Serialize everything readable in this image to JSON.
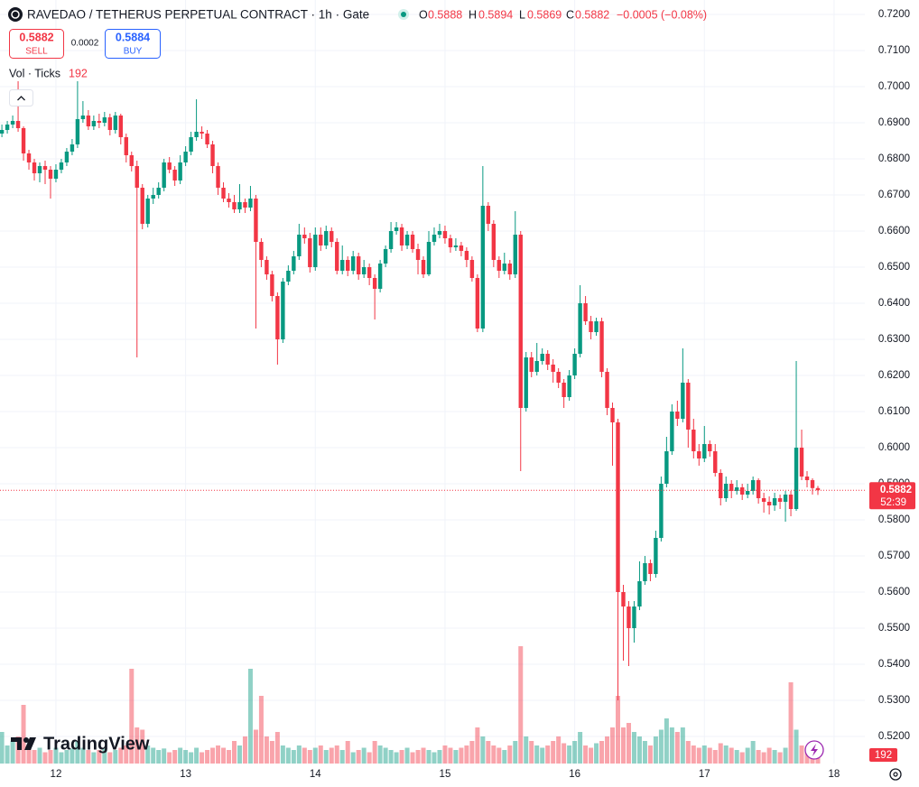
{
  "chart_data": {
    "type": "candlestick",
    "ohlc_header": {
      "symbol": "RAVEDAO / TETHERUS PERPETUAL CONTRACT · 1h · Gate",
      "o_label": "O",
      "o": "0.5888",
      "h_label": "H",
      "h": "0.5894",
      "l_label": "L",
      "l": "0.5869",
      "c_label": "C",
      "c": "0.5882",
      "change": "−0.0005 (−0.08%)"
    },
    "trade": {
      "sell_price": "0.5882",
      "sell_label": "SELL",
      "spread": "0.0002",
      "buy_price": "0.5884",
      "buy_label": "BUY"
    },
    "volume_title": "Vol · Ticks",
    "volume_value": "192",
    "brand": "TradingView",
    "last_price": {
      "value": 0.5882,
      "label": "0.5882",
      "countdown": "52:39"
    },
    "volume_axis_label": "192",
    "up_color": "#089981",
    "down_color": "#f23645",
    "ylim": [
      0.5115,
      0.724
    ],
    "yticks": [
      {
        "value": 0.52,
        "label": "0.5200"
      },
      {
        "value": 0.53,
        "label": "0.5300"
      },
      {
        "value": 0.54,
        "label": "0.5400"
      },
      {
        "value": 0.55,
        "label": "0.5500"
      },
      {
        "value": 0.56,
        "label": "0.5600"
      },
      {
        "value": 0.57,
        "label": "0.5700"
      },
      {
        "value": 0.58,
        "label": "0.5800"
      },
      {
        "value": 0.59,
        "label": "0.5900"
      },
      {
        "value": 0.6,
        "label": "0.6000"
      },
      {
        "value": 0.61,
        "label": "0.6100"
      },
      {
        "value": 0.62,
        "label": "0.6200"
      },
      {
        "value": 0.63,
        "label": "0.6300"
      },
      {
        "value": 0.64,
        "label": "0.6400"
      },
      {
        "value": 0.65,
        "label": "0.6500"
      },
      {
        "value": 0.66,
        "label": "0.6600"
      },
      {
        "value": 0.67,
        "label": "0.6700"
      },
      {
        "value": 0.68,
        "label": "0.6800"
      },
      {
        "value": 0.69,
        "label": "0.6900"
      },
      {
        "value": 0.7,
        "label": "0.7000"
      },
      {
        "value": 0.71,
        "label": "0.7100"
      },
      {
        "value": 0.72,
        "label": "0.7200"
      }
    ],
    "grid": true,
    "categories": [
      null,
      null,
      null,
      null,
      null,
      null,
      null,
      null,
      null,
      null,
      "12",
      null,
      null,
      null,
      null,
      null,
      null,
      null,
      null,
      null,
      null,
      null,
      null,
      null,
      null,
      null,
      null,
      null,
      null,
      null,
      null,
      null,
      null,
      null,
      "13",
      null,
      null,
      null,
      null,
      null,
      null,
      null,
      null,
      null,
      null,
      null,
      null,
      null,
      null,
      null,
      null,
      null,
      null,
      null,
      null,
      null,
      null,
      null,
      "14",
      null,
      null,
      null,
      null,
      null,
      null,
      null,
      null,
      null,
      null,
      null,
      null,
      null,
      null,
      null,
      null,
      null,
      null,
      null,
      null,
      null,
      null,
      null,
      "15",
      null,
      null,
      null,
      null,
      null,
      null,
      null,
      null,
      null,
      null,
      null,
      null,
      null,
      null,
      null,
      null,
      null,
      null,
      null,
      null,
      null,
      null,
      null,
      "16",
      null,
      null,
      null,
      null,
      null,
      null,
      null,
      null,
      null,
      null,
      null,
      null,
      null,
      null,
      null,
      null,
      null,
      null,
      null,
      null,
      null,
      null,
      null,
      "17",
      null,
      null,
      null,
      null,
      null,
      null,
      null,
      null,
      null,
      null,
      null,
      null,
      null,
      null,
      null,
      null,
      null,
      null,
      null,
      null,
      null,
      null,
      null,
      "18"
    ],
    "open": [
      0.687,
      0.688,
      0.6895,
      0.6905,
      0.6885,
      0.6815,
      0.679,
      0.676,
      0.678,
      0.677,
      0.6745,
      0.677,
      0.679,
      0.682,
      0.684,
      0.691,
      0.692,
      0.689,
      0.6905,
      0.69,
      0.6915,
      0.688,
      0.692,
      0.686,
      0.681,
      0.678,
      0.672,
      0.662,
      0.669,
      0.67,
      0.672,
      0.679,
      0.677,
      0.674,
      0.679,
      0.682,
      0.686,
      0.6875,
      0.687,
      0.684,
      0.678,
      0.672,
      0.669,
      0.668,
      0.666,
      0.668,
      0.6665,
      0.669,
      0.657,
      0.652,
      0.648,
      0.642,
      0.63,
      0.646,
      0.649,
      0.653,
      0.659,
      0.658,
      0.65,
      0.659,
      0.656,
      0.66,
      0.657,
      0.649,
      0.652,
      0.649,
      0.653,
      0.648,
      0.65,
      0.647,
      0.644,
      0.651,
      0.655,
      0.66,
      0.661,
      0.656,
      0.659,
      0.655,
      0.652,
      0.648,
      0.657,
      0.659,
      0.66,
      0.658,
      0.6555,
      0.656,
      0.6545,
      0.652,
      0.647,
      0.633,
      0.667,
      0.662,
      0.652,
      0.649,
      0.651,
      0.648,
      0.659,
      0.611,
      0.625,
      0.621,
      0.624,
      0.626,
      0.623,
      0.621,
      0.618,
      0.614,
      0.62,
      0.626,
      0.64,
      0.635,
      0.632,
      0.635,
      0.621,
      0.611,
      0.607,
      0.56,
      0.556,
      0.55,
      0.556,
      0.563,
      0.568,
      0.565,
      0.575,
      0.59,
      0.599,
      0.61,
      0.608,
      0.618,
      0.605,
      0.599,
      0.597,
      0.601,
      0.599,
      0.593,
      0.586,
      0.59,
      0.588,
      0.589,
      0.587,
      0.588,
      0.591,
      0.586,
      0.585,
      0.584,
      0.586,
      0.585,
      0.587,
      0.583,
      0.6,
      0.592,
      0.591,
      0.5888,
      null,
      null,
      null
    ],
    "high": [
      0.6895,
      0.6905,
      0.692,
      0.7015,
      0.689,
      0.6825,
      0.68,
      0.679,
      0.6795,
      0.678,
      0.6785,
      0.68,
      0.683,
      0.6855,
      0.7015,
      0.696,
      0.6935,
      0.692,
      0.6925,
      0.693,
      0.6925,
      0.693,
      0.6925,
      0.687,
      0.682,
      0.6795,
      0.673,
      0.67,
      0.672,
      0.6735,
      0.68,
      0.6805,
      0.678,
      0.681,
      0.6835,
      0.6875,
      0.6965,
      0.689,
      0.688,
      0.685,
      0.679,
      0.6735,
      0.6705,
      0.67,
      0.673,
      0.669,
      0.6725,
      0.67,
      0.658,
      0.653,
      0.649,
      0.643,
      0.647,
      0.6505,
      0.6545,
      0.662,
      0.661,
      0.6595,
      0.661,
      0.661,
      0.6615,
      0.661,
      0.658,
      0.656,
      0.653,
      0.6545,
      0.654,
      0.652,
      0.651,
      0.648,
      0.652,
      0.656,
      0.6625,
      0.6625,
      0.662,
      0.66,
      0.66,
      0.6565,
      0.653,
      0.66,
      0.661,
      0.662,
      0.6615,
      0.659,
      0.658,
      0.657,
      0.6555,
      0.653,
      0.648,
      0.678,
      0.668,
      0.663,
      0.653,
      0.654,
      0.652,
      0.6655,
      0.66,
      0.6265,
      0.6265,
      0.629,
      0.6275,
      0.627,
      0.6245,
      0.622,
      0.619,
      0.6215,
      0.6275,
      0.645,
      0.642,
      0.6365,
      0.636,
      0.636,
      0.622,
      0.6125,
      0.608,
      0.562,
      0.5575,
      0.5575,
      0.5685,
      0.57,
      0.569,
      0.577,
      0.592,
      0.603,
      0.612,
      0.613,
      0.6275,
      0.619,
      0.608,
      0.601,
      0.606,
      0.602,
      0.601,
      0.594,
      0.592,
      0.591,
      0.591,
      0.59,
      0.59,
      0.592,
      0.5915,
      0.5875,
      0.5865,
      0.5875,
      0.587,
      0.588,
      0.588,
      0.624,
      0.605,
      0.5935,
      0.5915,
      0.5894,
      null,
      null,
      null
    ],
    "low": [
      0.686,
      0.687,
      0.6885,
      0.6875,
      0.6795,
      0.677,
      0.674,
      0.6735,
      0.673,
      0.669,
      0.6735,
      0.676,
      0.678,
      0.681,
      0.683,
      0.69,
      0.688,
      0.688,
      0.6885,
      0.689,
      0.6865,
      0.687,
      0.684,
      0.679,
      0.6765,
      0.625,
      0.6605,
      0.661,
      0.6675,
      0.669,
      0.671,
      0.676,
      0.6725,
      0.673,
      0.678,
      0.681,
      0.685,
      0.6855,
      0.683,
      0.676,
      0.67,
      0.668,
      0.6665,
      0.665,
      0.665,
      0.665,
      0.6655,
      0.633,
      0.65,
      0.6465,
      0.6405,
      0.623,
      0.629,
      0.645,
      0.648,
      0.652,
      0.6565,
      0.6485,
      0.649,
      0.6545,
      0.655,
      0.6555,
      0.648,
      0.648,
      0.6475,
      0.648,
      0.6465,
      0.647,
      0.645,
      0.6355,
      0.643,
      0.65,
      0.654,
      0.659,
      0.6545,
      0.655,
      0.654,
      0.648,
      0.647,
      0.6475,
      0.656,
      0.658,
      0.6565,
      0.654,
      0.6545,
      0.653,
      0.65,
      0.646,
      0.632,
      0.632,
      0.66,
      0.65,
      0.647,
      0.648,
      0.6465,
      0.647,
      0.5935,
      0.61,
      0.6195,
      0.62,
      0.623,
      0.6215,
      0.618,
      0.6165,
      0.611,
      0.613,
      0.619,
      0.625,
      0.634,
      0.63,
      0.631,
      0.6195,
      0.609,
      0.595,
      0.53,
      0.541,
      0.5395,
      0.546,
      0.555,
      0.562,
      0.563,
      0.564,
      0.574,
      0.589,
      0.598,
      0.606,
      0.607,
      0.6,
      0.597,
      0.595,
      0.596,
      0.5975,
      0.592,
      0.584,
      0.585,
      0.586,
      0.587,
      0.5855,
      0.586,
      0.587,
      0.5845,
      0.582,
      0.5815,
      0.5825,
      0.583,
      0.5795,
      0.581,
      0.5825,
      0.591,
      0.589,
      0.587,
      0.5869,
      null,
      null,
      null
    ],
    "close": [
      0.688,
      0.6895,
      0.6905,
      0.6885,
      0.6815,
      0.679,
      0.676,
      0.678,
      0.677,
      0.6745,
      0.677,
      0.679,
      0.682,
      0.684,
      0.691,
      0.692,
      0.689,
      0.6905,
      0.69,
      0.6915,
      0.688,
      0.692,
      0.686,
      0.681,
      0.678,
      0.672,
      0.662,
      0.669,
      0.67,
      0.672,
      0.679,
      0.677,
      0.674,
      0.679,
      0.682,
      0.686,
      0.6875,
      0.687,
      0.684,
      0.678,
      0.672,
      0.669,
      0.668,
      0.666,
      0.668,
      0.6665,
      0.669,
      0.657,
      0.652,
      0.648,
      0.642,
      0.63,
      0.646,
      0.649,
      0.653,
      0.659,
      0.658,
      0.65,
      0.659,
      0.656,
      0.66,
      0.657,
      0.649,
      0.652,
      0.649,
      0.653,
      0.648,
      0.65,
      0.647,
      0.644,
      0.651,
      0.655,
      0.66,
      0.661,
      0.656,
      0.659,
      0.655,
      0.652,
      0.648,
      0.657,
      0.659,
      0.66,
      0.658,
      0.6555,
      0.656,
      0.6545,
      0.652,
      0.647,
      0.633,
      0.667,
      0.662,
      0.652,
      0.649,
      0.651,
      0.648,
      0.659,
      0.611,
      0.625,
      0.621,
      0.624,
      0.626,
      0.623,
      0.621,
      0.618,
      0.614,
      0.62,
      0.626,
      0.64,
      0.635,
      0.632,
      0.635,
      0.621,
      0.611,
      0.607,
      0.56,
      0.556,
      0.55,
      0.556,
      0.563,
      0.568,
      0.565,
      0.575,
      0.59,
      0.599,
      0.61,
      0.608,
      0.618,
      0.605,
      0.599,
      0.597,
      0.601,
      0.599,
      0.593,
      0.586,
      0.59,
      0.588,
      0.589,
      0.587,
      0.588,
      0.591,
      0.586,
      0.585,
      0.584,
      0.586,
      0.585,
      0.587,
      0.583,
      0.6,
      0.592,
      0.591,
      0.5888,
      0.5882,
      null,
      null,
      null
    ],
    "volume": [
      840,
      480,
      600,
      720,
      1560,
      480,
      360,
      420,
      300,
      360,
      420,
      300,
      360,
      400,
      600,
      420,
      360,
      300,
      360,
      400,
      300,
      360,
      420,
      480,
      2520,
      960,
      900,
      480,
      420,
      360,
      400,
      300,
      360,
      420,
      360,
      300,
      420,
      300,
      360,
      420,
      480,
      420,
      360,
      600,
      480,
      720,
      2520,
      900,
      1800,
      720,
      600,
      840,
      480,
      420,
      360,
      480,
      420,
      360,
      420,
      480,
      360,
      420,
      480,
      360,
      600,
      300,
      360,
      420,
      300,
      600,
      480,
      420,
      360,
      300,
      360,
      420,
      300,
      360,
      420,
      360,
      300,
      360,
      480,
      420,
      360,
      420,
      480,
      600,
      960,
      720,
      600,
      480,
      420,
      360,
      480,
      600,
      3120,
      720,
      600,
      480,
      420,
      480,
      600,
      720,
      540,
      480,
      600,
      840,
      480,
      420,
      540,
      600,
      720,
      960,
      1800,
      960,
      1080,
      840,
      720,
      600,
      480,
      720,
      900,
      1200,
      960,
      840,
      960,
      600,
      480,
      420,
      480,
      420,
      360,
      540,
      480,
      420,
      360,
      300,
      420,
      600,
      360,
      300,
      420,
      360,
      300,
      420,
      2160,
      900,
      480,
      300,
      240,
      192,
      null,
      null,
      null
    ]
  }
}
